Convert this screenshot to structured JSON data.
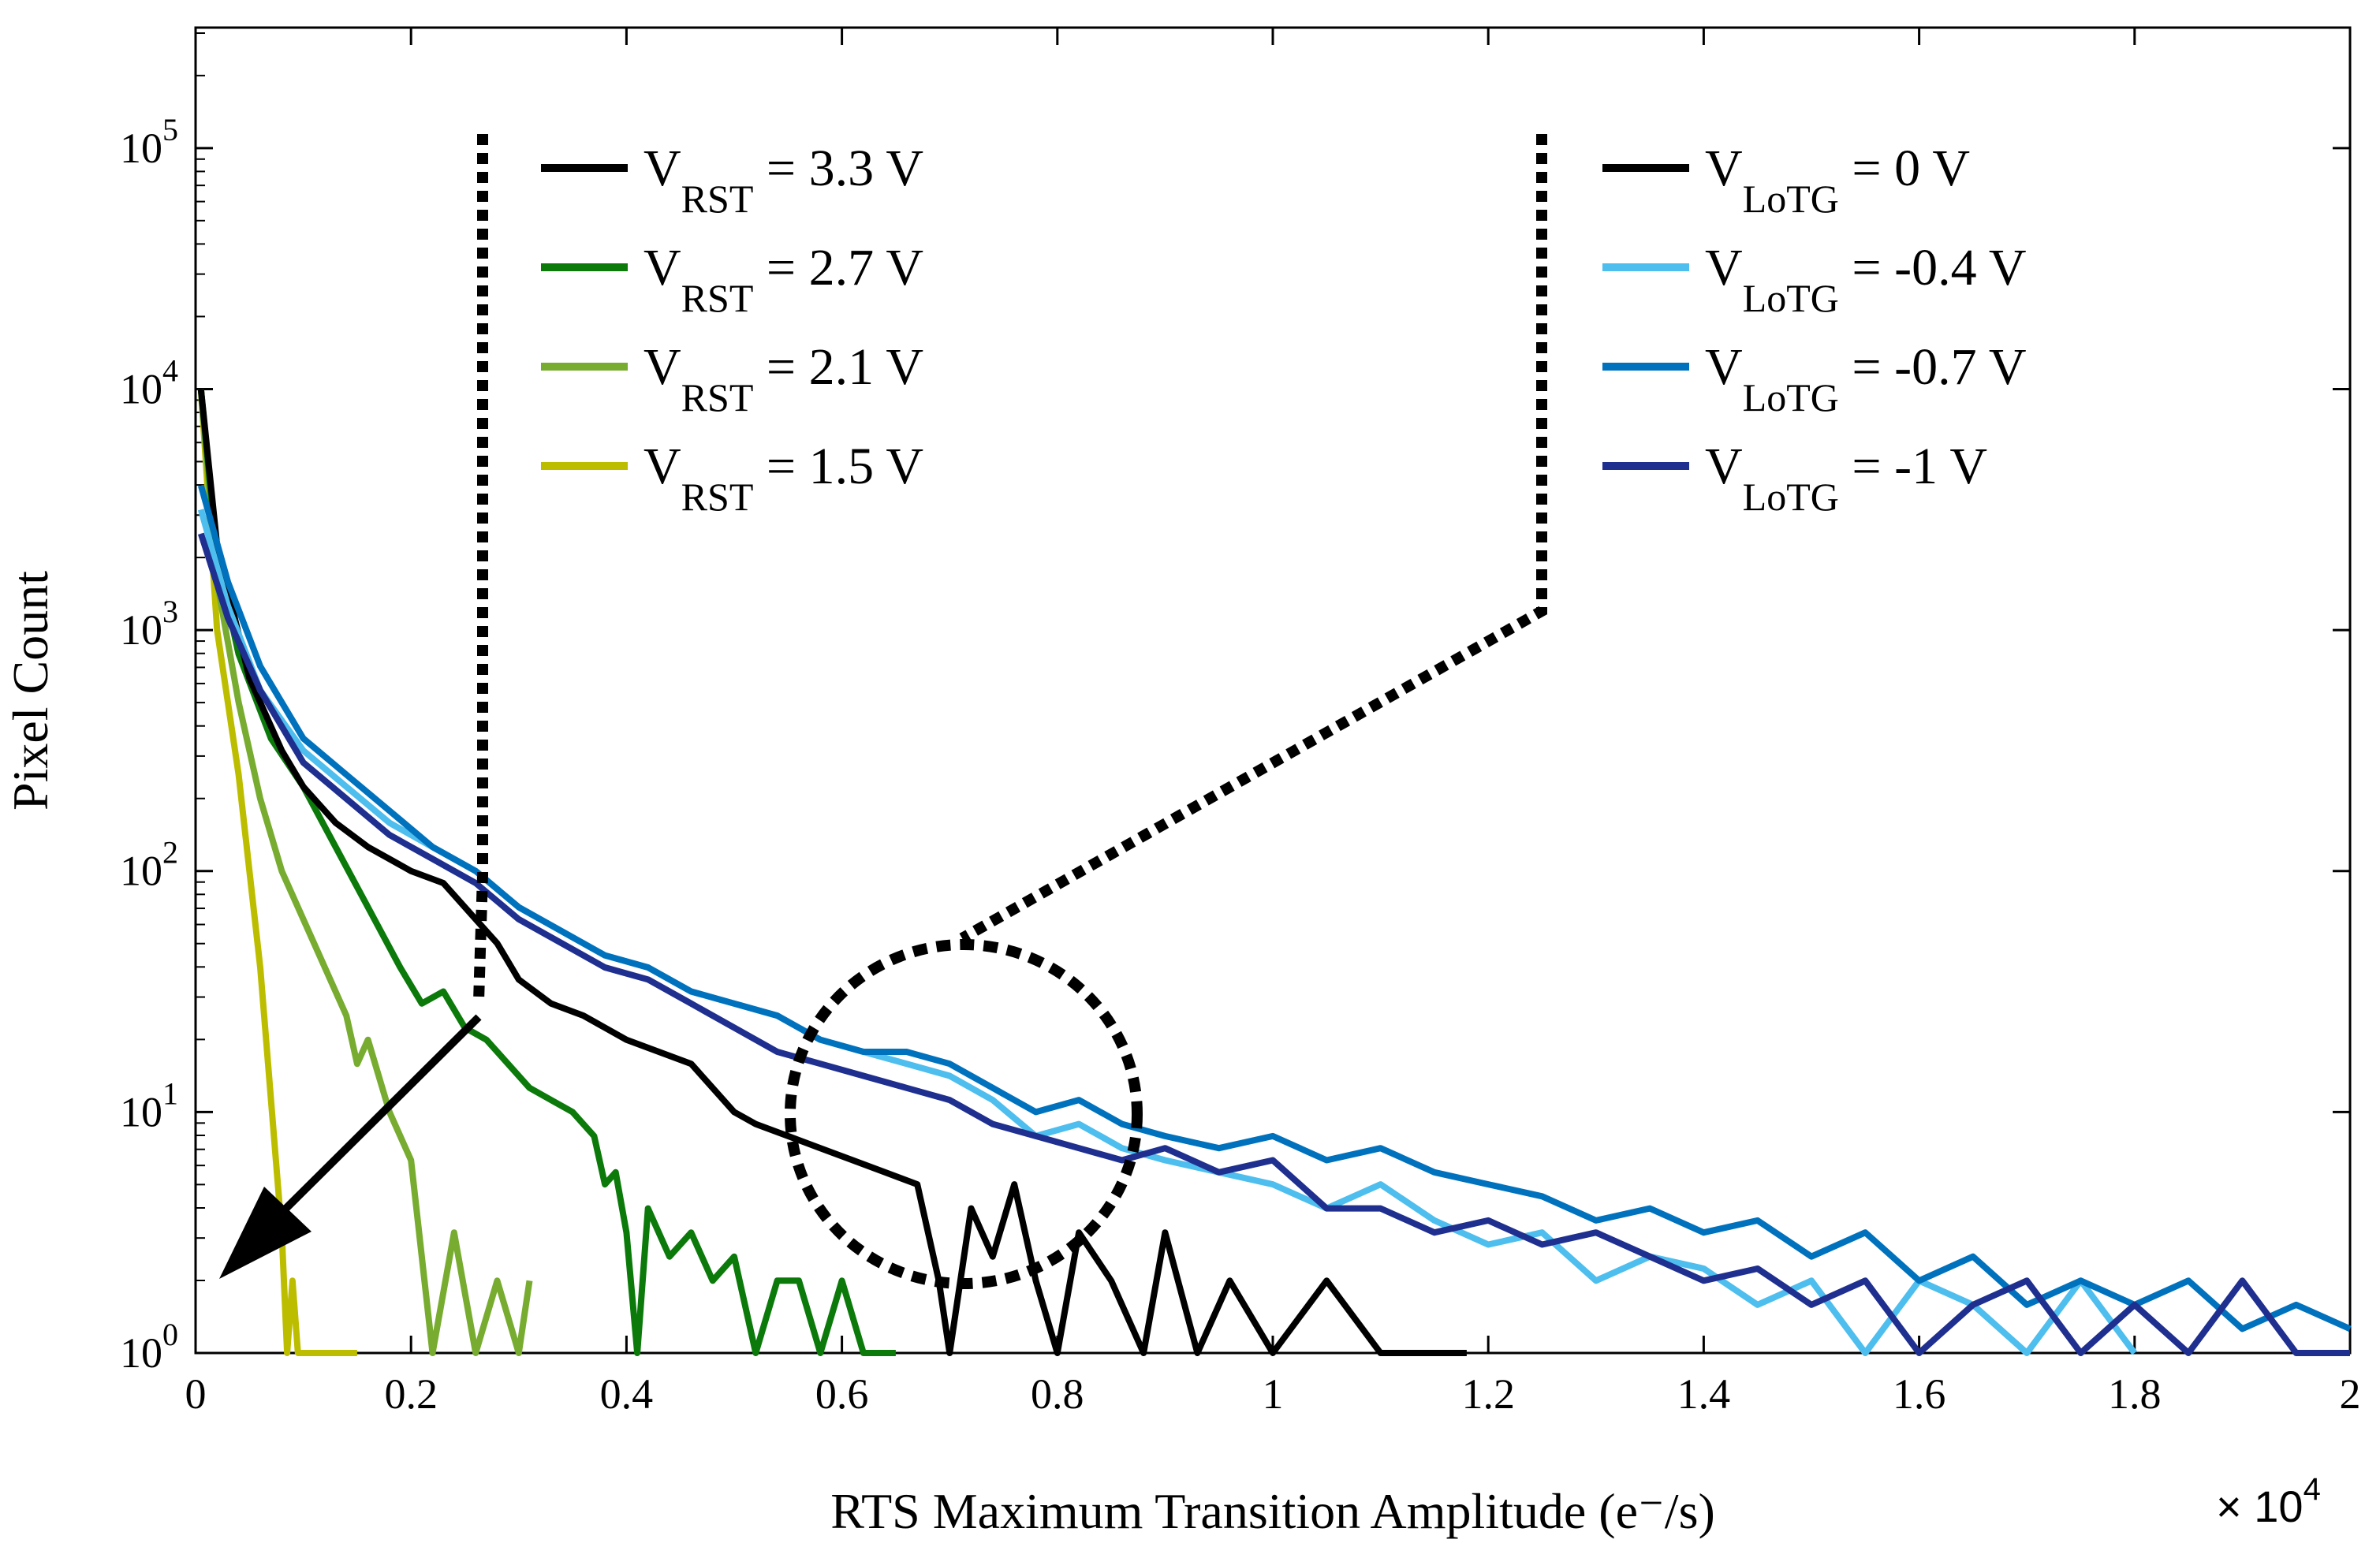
{
  "chart_data": {
    "type": "line",
    "title": "",
    "xlabel": "RTS Maximum Transition Amplitude (e⁻/s)",
    "ylabel": "Pixel Count",
    "x_multiplier": "× 10",
    "x_multiplier_exp": "4",
    "xlim": [
      0,
      2
    ],
    "ylim_log10": [
      0,
      5.5
    ],
    "x_ticks": [
      "0",
      "0.2",
      "0.4",
      "0.6",
      "0.8",
      "1",
      "1.2",
      "1.4",
      "1.6",
      "1.8",
      "2"
    ],
    "y_ticks": [
      {
        "base": "10",
        "exp": "0"
      },
      {
        "base": "10",
        "exp": "1"
      },
      {
        "base": "10",
        "exp": "2"
      },
      {
        "base": "10",
        "exp": "3"
      },
      {
        "base": "10",
        "exp": "4"
      },
      {
        "base": "10",
        "exp": "5"
      }
    ],
    "legend_left": [
      {
        "main": "V",
        "sub": "RST",
        "rest": " = 3.3 V",
        "color": "#000000"
      },
      {
        "main": "V",
        "sub": "RST",
        "rest": " = 2.7 V",
        "color": "#0b7a0b"
      },
      {
        "main": "V",
        "sub": "RST",
        "rest": " = 2.1 V",
        "color": "#77ac30"
      },
      {
        "main": "V",
        "sub": "RST",
        "rest": " = 1.5 V",
        "color": "#bdbd00"
      }
    ],
    "legend_right": [
      {
        "main": "V",
        "sub": "LoTG",
        "rest": " = 0 V",
        "color": "#000000"
      },
      {
        "main": "V",
        "sub": "LoTG",
        "rest": " = -0.4 V",
        "color": "#4dbeee"
      },
      {
        "main": "V",
        "sub": "LoTG",
        "rest": " = -0.7 V",
        "color": "#0072bd"
      },
      {
        "main": "V",
        "sub": "LoTG",
        "rest": " = -1 V",
        "color": "#1f2f8f"
      }
    ],
    "series": [
      {
        "name": "V_RST = 1.5 V",
        "color": "#bdbd00",
        "points": [
          [
            0.005,
            4.0
          ],
          [
            0.02,
            3.0
          ],
          [
            0.04,
            2.4
          ],
          [
            0.06,
            1.6
          ],
          [
            0.08,
            0.5
          ],
          [
            0.085,
            0.0
          ],
          [
            0.09,
            0.3
          ],
          [
            0.095,
            0.0
          ],
          [
            0.14,
            0.0
          ],
          [
            0.15,
            0.0
          ]
        ]
      },
      {
        "name": "V_RST = 2.1 V",
        "color": "#77ac30",
        "points": [
          [
            0.005,
            4.0
          ],
          [
            0.02,
            3.2
          ],
          [
            0.04,
            2.7
          ],
          [
            0.06,
            2.3
          ],
          [
            0.08,
            2.0
          ],
          [
            0.1,
            1.8
          ],
          [
            0.12,
            1.6
          ],
          [
            0.14,
            1.4
          ],
          [
            0.15,
            1.2
          ],
          [
            0.16,
            1.3
          ],
          [
            0.18,
            1.0
          ],
          [
            0.2,
            0.8
          ],
          [
            0.22,
            0.0
          ],
          [
            0.24,
            0.5
          ],
          [
            0.26,
            0.0
          ],
          [
            0.28,
            0.3
          ],
          [
            0.3,
            0.0
          ],
          [
            0.31,
            0.3
          ]
        ]
      },
      {
        "name": "V_RST = 2.7 V",
        "color": "#0b7a0b",
        "points": [
          [
            0.005,
            4.0
          ],
          [
            0.02,
            3.3
          ],
          [
            0.04,
            2.9
          ],
          [
            0.07,
            2.55
          ],
          [
            0.1,
            2.35
          ],
          [
            0.13,
            2.1
          ],
          [
            0.16,
            1.85
          ],
          [
            0.19,
            1.6
          ],
          [
            0.21,
            1.45
          ],
          [
            0.23,
            1.5
          ],
          [
            0.25,
            1.35
          ],
          [
            0.27,
            1.3
          ],
          [
            0.29,
            1.2
          ],
          [
            0.31,
            1.1
          ],
          [
            0.33,
            1.05
          ],
          [
            0.35,
            1.0
          ],
          [
            0.37,
            0.9
          ],
          [
            0.38,
            0.7
          ],
          [
            0.39,
            0.75
          ],
          [
            0.4,
            0.5
          ],
          [
            0.41,
            0.0
          ],
          [
            0.42,
            0.6
          ],
          [
            0.44,
            0.4
          ],
          [
            0.46,
            0.5
          ],
          [
            0.48,
            0.3
          ],
          [
            0.5,
            0.4
          ],
          [
            0.52,
            0.0
          ],
          [
            0.54,
            0.3
          ],
          [
            0.56,
            0.3
          ],
          [
            0.58,
            0.0
          ],
          [
            0.6,
            0.3
          ],
          [
            0.62,
            0.0
          ],
          [
            0.65,
            0.0
          ]
        ]
      },
      {
        "name": "V_RST = 3.3 V",
        "color": "#000000",
        "points": [
          [
            0.005,
            4.0
          ],
          [
            0.02,
            3.35
          ],
          [
            0.05,
            2.8
          ],
          [
            0.08,
            2.5
          ],
          [
            0.1,
            2.35
          ],
          [
            0.13,
            2.2
          ],
          [
            0.16,
            2.1
          ],
          [
            0.2,
            2.0
          ],
          [
            0.23,
            1.95
          ],
          [
            0.26,
            1.8
          ],
          [
            0.28,
            1.7
          ],
          [
            0.3,
            1.55
          ],
          [
            0.33,
            1.45
          ],
          [
            0.36,
            1.4
          ],
          [
            0.4,
            1.3
          ],
          [
            0.43,
            1.25
          ],
          [
            0.46,
            1.2
          ],
          [
            0.48,
            1.1
          ],
          [
            0.5,
            1.0
          ],
          [
            0.52,
            0.95
          ],
          [
            0.55,
            0.9
          ],
          [
            0.58,
            0.85
          ],
          [
            0.61,
            0.8
          ],
          [
            0.64,
            0.75
          ],
          [
            0.67,
            0.7
          ],
          [
            0.69,
            0.3
          ],
          [
            0.7,
            0.0
          ],
          [
            0.72,
            0.6
          ],
          [
            0.74,
            0.4
          ],
          [
            0.76,
            0.7
          ],
          [
            0.78,
            0.3
          ],
          [
            0.8,
            0.0
          ],
          [
            0.82,
            0.5
          ],
          [
            0.85,
            0.3
          ],
          [
            0.88,
            0.0
          ],
          [
            0.9,
            0.5
          ],
          [
            0.93,
            0.0
          ],
          [
            0.96,
            0.3
          ],
          [
            1.0,
            0.0
          ],
          [
            1.05,
            0.3
          ],
          [
            1.1,
            0.0
          ],
          [
            1.14,
            0.0
          ],
          [
            1.18,
            0.0
          ]
        ]
      },
      {
        "name": "V_LoTG = -0.4 V",
        "color": "#4dbeee",
        "points": [
          [
            0.005,
            3.5
          ],
          [
            0.03,
            3.1
          ],
          [
            0.06,
            2.75
          ],
          [
            0.1,
            2.5
          ],
          [
            0.14,
            2.35
          ],
          [
            0.18,
            2.2
          ],
          [
            0.22,
            2.1
          ],
          [
            0.26,
            2.0
          ],
          [
            0.3,
            1.85
          ],
          [
            0.34,
            1.75
          ],
          [
            0.38,
            1.65
          ],
          [
            0.42,
            1.6
          ],
          [
            0.46,
            1.5
          ],
          [
            0.5,
            1.45
          ],
          [
            0.54,
            1.4
          ],
          [
            0.58,
            1.3
          ],
          [
            0.62,
            1.25
          ],
          [
            0.66,
            1.2
          ],
          [
            0.7,
            1.15
          ],
          [
            0.74,
            1.05
          ],
          [
            0.78,
            0.9
          ],
          [
            0.82,
            0.95
          ],
          [
            0.86,
            0.85
          ],
          [
            0.9,
            0.8
          ],
          [
            0.95,
            0.75
          ],
          [
            1.0,
            0.7
          ],
          [
            1.05,
            0.6
          ],
          [
            1.1,
            0.7
          ],
          [
            1.15,
            0.55
          ],
          [
            1.2,
            0.45
          ],
          [
            1.25,
            0.5
          ],
          [
            1.3,
            0.3
          ],
          [
            1.35,
            0.4
          ],
          [
            1.4,
            0.35
          ],
          [
            1.45,
            0.2
          ],
          [
            1.5,
            0.3
          ],
          [
            1.55,
            0.0
          ],
          [
            1.6,
            0.3
          ],
          [
            1.65,
            0.2
          ],
          [
            1.7,
            0.0
          ],
          [
            1.75,
            0.3
          ],
          [
            1.8,
            0.0
          ]
        ]
      },
      {
        "name": "V_LoTG = -0.7 V",
        "color": "#0072bd",
        "points": [
          [
            0.005,
            3.6
          ],
          [
            0.03,
            3.2
          ],
          [
            0.06,
            2.85
          ],
          [
            0.1,
            2.55
          ],
          [
            0.14,
            2.4
          ],
          [
            0.18,
            2.25
          ],
          [
            0.22,
            2.1
          ],
          [
            0.26,
            2.0
          ],
          [
            0.3,
            1.85
          ],
          [
            0.34,
            1.75
          ],
          [
            0.38,
            1.65
          ],
          [
            0.42,
            1.6
          ],
          [
            0.46,
            1.5
          ],
          [
            0.5,
            1.45
          ],
          [
            0.54,
            1.4
          ],
          [
            0.58,
            1.3
          ],
          [
            0.62,
            1.25
          ],
          [
            0.66,
            1.25
          ],
          [
            0.7,
            1.2
          ],
          [
            0.74,
            1.1
          ],
          [
            0.78,
            1.0
          ],
          [
            0.82,
            1.05
          ],
          [
            0.86,
            0.95
          ],
          [
            0.9,
            0.9
          ],
          [
            0.95,
            0.85
          ],
          [
            1.0,
            0.9
          ],
          [
            1.05,
            0.8
          ],
          [
            1.1,
            0.85
          ],
          [
            1.15,
            0.75
          ],
          [
            1.2,
            0.7
          ],
          [
            1.25,
            0.65
          ],
          [
            1.3,
            0.55
          ],
          [
            1.35,
            0.6
          ],
          [
            1.4,
            0.5
          ],
          [
            1.45,
            0.55
          ],
          [
            1.5,
            0.4
          ],
          [
            1.55,
            0.5
          ],
          [
            1.6,
            0.3
          ],
          [
            1.65,
            0.4
          ],
          [
            1.7,
            0.2
          ],
          [
            1.75,
            0.3
          ],
          [
            1.8,
            0.2
          ],
          [
            1.85,
            0.3
          ],
          [
            1.9,
            0.1
          ],
          [
            1.95,
            0.2
          ],
          [
            2.0,
            0.1
          ]
        ]
      },
      {
        "name": "V_LoTG = -1 V",
        "color": "#1f2f8f",
        "points": [
          [
            0.005,
            3.4
          ],
          [
            0.03,
            3.05
          ],
          [
            0.06,
            2.75
          ],
          [
            0.1,
            2.45
          ],
          [
            0.14,
            2.3
          ],
          [
            0.18,
            2.15
          ],
          [
            0.22,
            2.05
          ],
          [
            0.26,
            1.95
          ],
          [
            0.3,
            1.8
          ],
          [
            0.34,
            1.7
          ],
          [
            0.38,
            1.6
          ],
          [
            0.42,
            1.55
          ],
          [
            0.46,
            1.45
          ],
          [
            0.5,
            1.35
          ],
          [
            0.54,
            1.25
          ],
          [
            0.58,
            1.2
          ],
          [
            0.62,
            1.15
          ],
          [
            0.66,
            1.1
          ],
          [
            0.7,
            1.05
          ],
          [
            0.74,
            0.95
          ],
          [
            0.78,
            0.9
          ],
          [
            0.82,
            0.85
          ],
          [
            0.86,
            0.8
          ],
          [
            0.9,
            0.85
          ],
          [
            0.95,
            0.75
          ],
          [
            1.0,
            0.8
          ],
          [
            1.05,
            0.6
          ],
          [
            1.1,
            0.6
          ],
          [
            1.15,
            0.5
          ],
          [
            1.2,
            0.55
          ],
          [
            1.25,
            0.45
          ],
          [
            1.3,
            0.5
          ],
          [
            1.35,
            0.4
          ],
          [
            1.4,
            0.3
          ],
          [
            1.45,
            0.35
          ],
          [
            1.5,
            0.2
          ],
          [
            1.55,
            0.3
          ],
          [
            1.6,
            0.0
          ],
          [
            1.65,
            0.2
          ],
          [
            1.7,
            0.3
          ],
          [
            1.75,
            0.0
          ],
          [
            1.8,
            0.2
          ],
          [
            1.85,
            0.0
          ],
          [
            1.9,
            0.3
          ],
          [
            1.95,
            0.0
          ],
          [
            2.0,
            0.0
          ]
        ]
      },
      {
        "name": "V_LoTG = 0 V",
        "color": "#000000",
        "points": []
      }
    ]
  }
}
